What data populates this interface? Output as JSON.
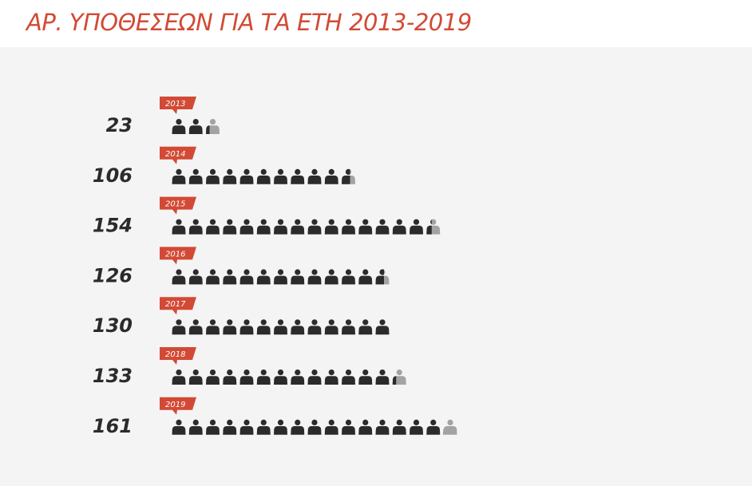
{
  "header": {
    "title": "ΑΡ. ΥΠΟΘΕΣΕΩΝ ΓΙΑ ΤΑ ΕΤΗ 2013-2019"
  },
  "colors": {
    "accent": "#d24a35",
    "icon_full": "#2b2b2b",
    "icon_partial": "#a3a3a3",
    "panel_bg": "#f4f4f4"
  },
  "chart_data": {
    "type": "pictogram",
    "title": "ΑΡ. ΥΠΟΘΕΣΕΩΝ ΓΙΑ ΤΑ ΕΤΗ 2013-2019",
    "icon": "person-icon",
    "unit_per_icon": 10,
    "categories": [
      "2013",
      "2014",
      "2015",
      "2016",
      "2017",
      "2018",
      "2019"
    ],
    "values": [
      23,
      106,
      154,
      126,
      130,
      133,
      161
    ],
    "value_labels": [
      "23",
      "106",
      "154",
      "126",
      "130",
      "133",
      "161"
    ]
  }
}
